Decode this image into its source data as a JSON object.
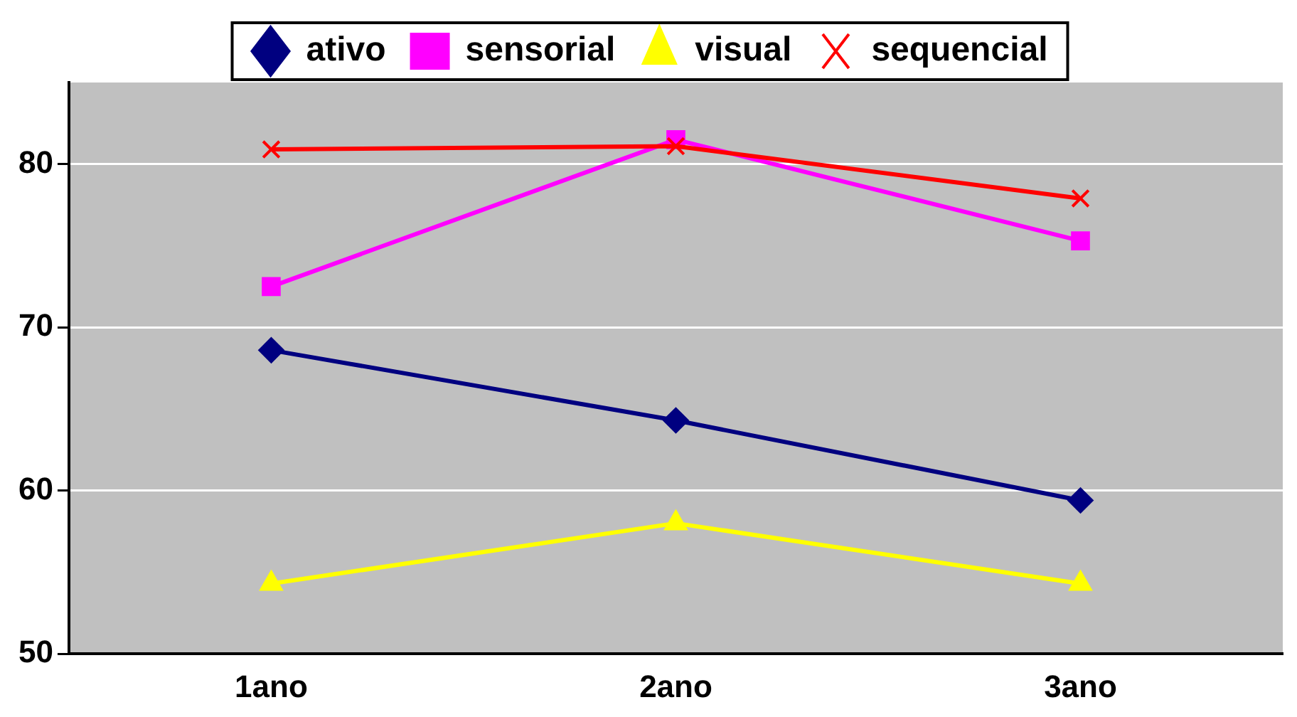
{
  "chart_data": {
    "type": "line",
    "categories": [
      "1ano",
      "2ano",
      "3ano"
    ],
    "series": [
      {
        "name": "ativo",
        "color": "#000080",
        "marker": "diamond",
        "values": [
          68.6,
          64.3,
          59.4
        ]
      },
      {
        "name": "sensorial",
        "color": "#ff00ff",
        "marker": "square",
        "values": [
          72.5,
          81.5,
          75.3
        ]
      },
      {
        "name": "visual",
        "color": "#ffff00",
        "marker": "triangle",
        "values": [
          54.3,
          58.0,
          54.3
        ]
      },
      {
        "name": "sequencial",
        "color": "#ff0000",
        "marker": "cross",
        "values": [
          80.9,
          81.1,
          77.9
        ]
      }
    ],
    "ylim": [
      50,
      85
    ],
    "yticks": [
      50,
      60,
      70,
      80
    ],
    "grid": "y",
    "legend": "top",
    "line_style": "solid"
  }
}
